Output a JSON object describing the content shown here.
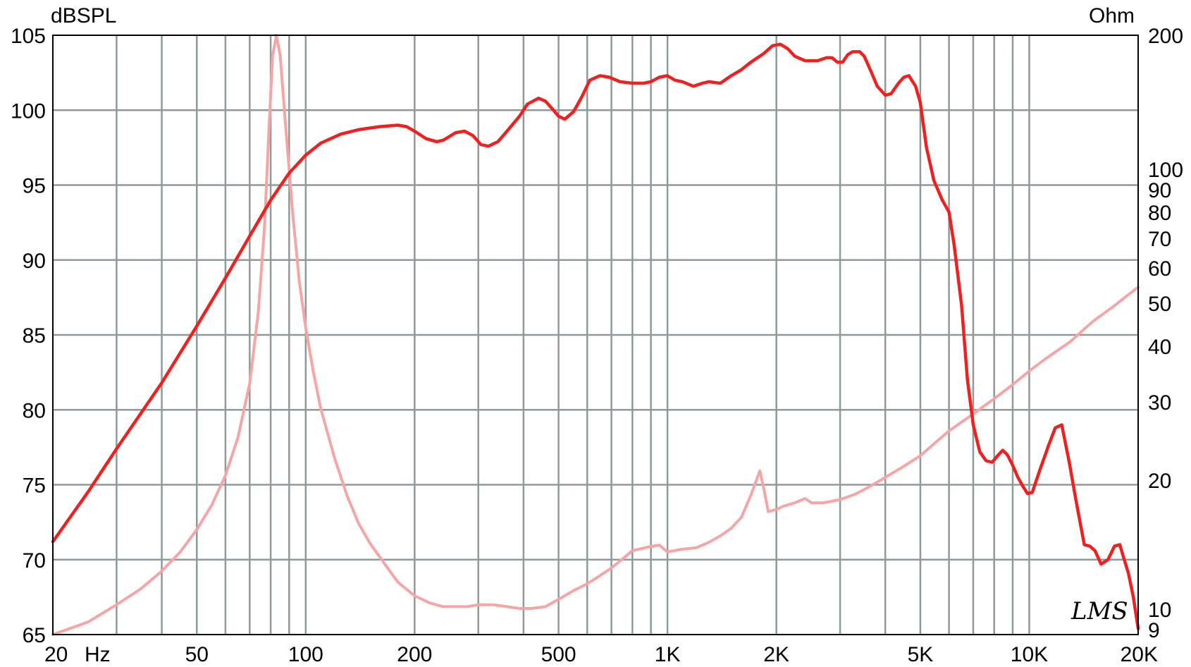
{
  "chart_data": {
    "type": "line",
    "x_scale": "log",
    "x_range": [
      20,
      20000
    ],
    "y_left_range": [
      65,
      105
    ],
    "y_right_scale": "log",
    "y_right_range": [
      9,
      200
    ],
    "left_unit": "dBSPL",
    "right_unit": "Ohm",
    "x_unit": "Hz",
    "grid": true,
    "logo": "LMS",
    "x_ticks": [
      {
        "v": 20,
        "t": "20"
      },
      {
        "v": 50,
        "t": "50"
      },
      {
        "v": 100,
        "t": "100"
      },
      {
        "v": 200,
        "t": "200"
      },
      {
        "v": 500,
        "t": "500"
      },
      {
        "v": 1000,
        "t": "1K"
      },
      {
        "v": 2000,
        "t": "2K"
      },
      {
        "v": 5000,
        "t": "5K"
      },
      {
        "v": 10000,
        "t": "10K"
      },
      {
        "v": 20000,
        "t": "20K"
      }
    ],
    "y_left_ticks": [
      65,
      70,
      75,
      80,
      85,
      90,
      95,
      100,
      105
    ],
    "y_right_ticks": [
      9,
      10,
      20,
      30,
      40,
      50,
      60,
      70,
      80,
      90,
      100,
      200
    ],
    "series": [
      {
        "axis": "left",
        "color": "#ee2020",
        "points": [
          [
            20,
            71.2
          ],
          [
            25,
            74.5
          ],
          [
            30,
            77.4
          ],
          [
            40,
            81.8
          ],
          [
            50,
            85.6
          ],
          [
            60,
            88.8
          ],
          [
            70,
            91.6
          ],
          [
            80,
            94.0
          ],
          [
            90,
            95.8
          ],
          [
            100,
            97.0
          ],
          [
            110,
            97.8
          ],
          [
            125,
            98.4
          ],
          [
            140,
            98.7
          ],
          [
            160,
            98.9
          ],
          [
            180,
            99.0
          ],
          [
            190,
            98.9
          ],
          [
            200,
            98.6
          ],
          [
            215,
            98.1
          ],
          [
            230,
            97.9
          ],
          [
            240,
            98.0
          ],
          [
            260,
            98.5
          ],
          [
            275,
            98.6
          ],
          [
            290,
            98.3
          ],
          [
            305,
            97.7
          ],
          [
            320,
            97.6
          ],
          [
            340,
            97.9
          ],
          [
            360,
            98.6
          ],
          [
            390,
            99.6
          ],
          [
            410,
            100.4
          ],
          [
            440,
            100.8
          ],
          [
            460,
            100.6
          ],
          [
            480,
            100.1
          ],
          [
            500,
            99.6
          ],
          [
            520,
            99.4
          ],
          [
            550,
            99.9
          ],
          [
            580,
            100.9
          ],
          [
            610,
            102.0
          ],
          [
            650,
            102.3
          ],
          [
            690,
            102.2
          ],
          [
            740,
            101.9
          ],
          [
            800,
            101.8
          ],
          [
            860,
            101.8
          ],
          [
            900,
            101.9
          ],
          [
            950,
            102.2
          ],
          [
            1000,
            102.3
          ],
          [
            1050,
            102.0
          ],
          [
            1100,
            101.9
          ],
          [
            1180,
            101.6
          ],
          [
            1250,
            101.8
          ],
          [
            1300,
            101.9
          ],
          [
            1400,
            101.8
          ],
          [
            1500,
            102.3
          ],
          [
            1600,
            102.7
          ],
          [
            1700,
            103.2
          ],
          [
            1850,
            103.8
          ],
          [
            1950,
            104.3
          ],
          [
            2050,
            104.4
          ],
          [
            2150,
            104.1
          ],
          [
            2250,
            103.6
          ],
          [
            2400,
            103.3
          ],
          [
            2600,
            103.3
          ],
          [
            2750,
            103.5
          ],
          [
            2850,
            103.5
          ],
          [
            2950,
            103.2
          ],
          [
            3050,
            103.2
          ],
          [
            3150,
            103.7
          ],
          [
            3250,
            103.9
          ],
          [
            3400,
            103.9
          ],
          [
            3500,
            103.6
          ],
          [
            3650,
            102.6
          ],
          [
            3800,
            101.6
          ],
          [
            4000,
            101.0
          ],
          [
            4150,
            101.1
          ],
          [
            4350,
            101.8
          ],
          [
            4500,
            102.2
          ],
          [
            4650,
            102.3
          ],
          [
            4850,
            101.6
          ],
          [
            5000,
            100.5
          ],
          [
            5200,
            97.5
          ],
          [
            5450,
            95.3
          ],
          [
            5750,
            94.0
          ],
          [
            6000,
            93.2
          ],
          [
            6200,
            91.0
          ],
          [
            6500,
            87.0
          ],
          [
            6750,
            82.0
          ],
          [
            7000,
            79.0
          ],
          [
            7300,
            77.2
          ],
          [
            7600,
            76.6
          ],
          [
            7900,
            76.5
          ],
          [
            8150,
            76.9
          ],
          [
            8450,
            77.3
          ],
          [
            8700,
            77.0
          ],
          [
            9000,
            76.3
          ],
          [
            9300,
            75.5
          ],
          [
            9600,
            74.9
          ],
          [
            9900,
            74.4
          ],
          [
            10200,
            74.5
          ],
          [
            10700,
            76.0
          ],
          [
            11300,
            77.6
          ],
          [
            11800,
            78.8
          ],
          [
            12300,
            79.0
          ],
          [
            12900,
            76.5
          ],
          [
            13500,
            73.8
          ],
          [
            14200,
            71.0
          ],
          [
            14700,
            70.9
          ],
          [
            15200,
            70.6
          ],
          [
            15800,
            69.7
          ],
          [
            16500,
            70.0
          ],
          [
            17200,
            70.9
          ],
          [
            17800,
            71.0
          ],
          [
            18200,
            70.2
          ],
          [
            18800,
            69.1
          ],
          [
            19400,
            67.5
          ],
          [
            20000,
            65.4
          ]
        ]
      },
      {
        "axis": "right",
        "color": "#f5a5a5",
        "points": [
          [
            20,
            9.0
          ],
          [
            25,
            9.6
          ],
          [
            30,
            10.5
          ],
          [
            35,
            11.4
          ],
          [
            40,
            12.5
          ],
          [
            45,
            13.8
          ],
          [
            50,
            15.5
          ],
          [
            55,
            17.6
          ],
          [
            60,
            20.5
          ],
          [
            65,
            25.0
          ],
          [
            70,
            33.0
          ],
          [
            74,
            48.0
          ],
          [
            77,
            75.0
          ],
          [
            79,
            120.0
          ],
          [
            81,
            180.0
          ],
          [
            83,
            200.0
          ],
          [
            85,
            180.0
          ],
          [
            88,
            125.0
          ],
          [
            92,
            80.0
          ],
          [
            96,
            56.0
          ],
          [
            100,
            44.0
          ],
          [
            105,
            35.0
          ],
          [
            110,
            29.0
          ],
          [
            120,
            22.5
          ],
          [
            130,
            18.5
          ],
          [
            140,
            16.0
          ],
          [
            150,
            14.5
          ],
          [
            165,
            13.0
          ],
          [
            180,
            11.8
          ],
          [
            200,
            11.0
          ],
          [
            220,
            10.6
          ],
          [
            240,
            10.4
          ],
          [
            260,
            10.4
          ],
          [
            280,
            10.4
          ],
          [
            300,
            10.5
          ],
          [
            330,
            10.5
          ],
          [
            360,
            10.4
          ],
          [
            390,
            10.3
          ],
          [
            420,
            10.3
          ],
          [
            460,
            10.4
          ],
          [
            500,
            10.8
          ],
          [
            550,
            11.3
          ],
          [
            600,
            11.7
          ],
          [
            650,
            12.2
          ],
          [
            700,
            12.7
          ],
          [
            750,
            13.3
          ],
          [
            800,
            13.9
          ],
          [
            900,
            14.2
          ],
          [
            950,
            14.3
          ],
          [
            1000,
            13.8
          ],
          [
            1100,
            14.0
          ],
          [
            1200,
            14.1
          ],
          [
            1300,
            14.5
          ],
          [
            1400,
            15.0
          ],
          [
            1500,
            15.6
          ],
          [
            1600,
            16.5
          ],
          [
            1700,
            18.5
          ],
          [
            1800,
            21.0
          ],
          [
            1850,
            19.0
          ],
          [
            1900,
            17.0
          ],
          [
            2000,
            17.2
          ],
          [
            2100,
            17.5
          ],
          [
            2250,
            17.8
          ],
          [
            2400,
            18.2
          ],
          [
            2500,
            17.8
          ],
          [
            2700,
            17.8
          ],
          [
            3000,
            18.1
          ],
          [
            3300,
            18.6
          ],
          [
            3600,
            19.3
          ],
          [
            4000,
            20.3
          ],
          [
            4500,
            21.5
          ],
          [
            5000,
            22.7
          ],
          [
            5500,
            24.3
          ],
          [
            6000,
            25.8
          ],
          [
            7000,
            28.2
          ],
          [
            8000,
            30.5
          ],
          [
            9000,
            32.8
          ],
          [
            10000,
            35.2
          ],
          [
            11000,
            37.3
          ],
          [
            12000,
            39.2
          ],
          [
            13000,
            41.0
          ],
          [
            14000,
            43.3
          ],
          [
            15000,
            45.5
          ],
          [
            16000,
            47.3
          ],
          [
            17000,
            49.0
          ],
          [
            18000,
            50.8
          ],
          [
            19000,
            52.6
          ],
          [
            20000,
            54.3
          ]
        ]
      }
    ]
  }
}
